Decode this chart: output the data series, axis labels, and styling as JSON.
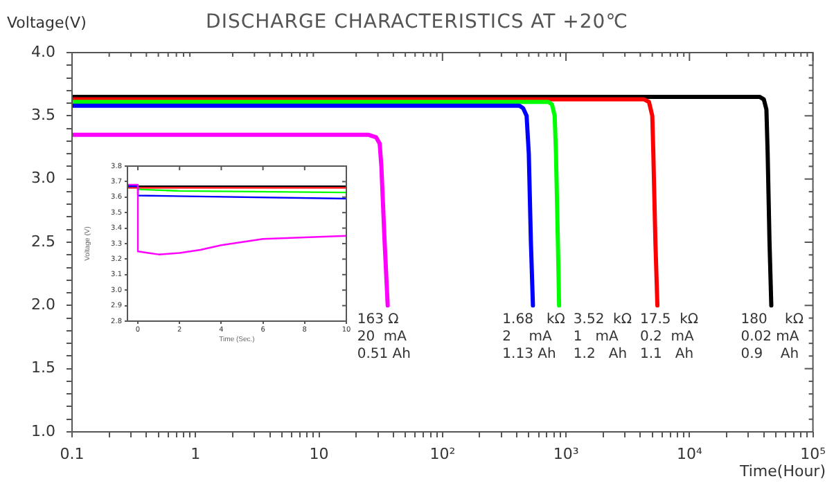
{
  "chart_data": [
    {
      "type": "line",
      "title": "DISCHARGE CHARACTERISTICS AT +20℃",
      "xlabel": "Time(Hour)",
      "ylabel": "Voltage(V)",
      "log": "x",
      "xlim": [
        0.1,
        100000
      ],
      "ylim": [
        1.0,
        4.0
      ],
      "xticks": [
        {
          "value": 0.1,
          "label": "0.1"
        },
        {
          "value": 0.2,
          "label": null
        },
        {
          "value": 0.3,
          "label": null
        },
        {
          "value": 0.4,
          "label": null
        },
        {
          "value": 0.5,
          "label": null
        },
        {
          "value": 0.6,
          "label": null
        },
        {
          "value": 0.7,
          "label": null
        },
        {
          "value": 0.8,
          "label": null
        },
        {
          "value": 0.9,
          "label": null
        },
        1,
        {
          "value": 2,
          "label": null
        },
        {
          "value": 3,
          "label": null
        },
        {
          "value": 4,
          "label": null
        },
        {
          "value": 5,
          "label": null
        },
        {
          "value": 6,
          "label": null
        },
        {
          "value": 7,
          "label": null
        },
        {
          "value": 8,
          "label": null
        },
        {
          "value": 9,
          "label": null
        },
        10,
        {
          "value": 20,
          "label": null
        },
        {
          "value": 30,
          "label": null
        },
        {
          "value": 40,
          "label": null
        },
        {
          "value": 50,
          "label": null
        },
        {
          "value": 60,
          "label": null
        },
        {
          "value": 70,
          "label": null
        },
        {
          "value": 80,
          "label": null
        },
        {
          "value": 90,
          "label": null
        },
        {
          "value": 100,
          "label": "10²"
        },
        {
          "value": 200,
          "label": null
        },
        {
          "value": 300,
          "label": null
        },
        {
          "value": 400,
          "label": null
        },
        {
          "value": 500,
          "label": null
        },
        {
          "value": 600,
          "label": null
        },
        {
          "value": 700,
          "label": null
        },
        {
          "value": 800,
          "label": null
        },
        {
          "value": 900,
          "label": null
        },
        {
          "value": 1000,
          "label": "10³"
        },
        {
          "value": 2000,
          "label": null
        },
        {
          "value": 3000,
          "label": null
        },
        {
          "value": 4000,
          "label": null
        },
        {
          "value": 5000,
          "label": null
        },
        {
          "value": 6000,
          "label": null
        },
        {
          "value": 7000,
          "label": null
        },
        {
          "value": 8000,
          "label": null
        },
        {
          "value": 9000,
          "label": null
        },
        {
          "value": 10000,
          "label": "10⁴"
        },
        {
          "value": 20000,
          "label": null
        },
        {
          "value": 30000,
          "label": null
        },
        {
          "value": 40000,
          "label": null
        },
        {
          "value": 50000,
          "label": null
        },
        {
          "value": 60000,
          "label": null
        },
        {
          "value": 70000,
          "label": null
        },
        {
          "value": 80000,
          "label": null
        },
        {
          "value": 90000,
          "label": null
        },
        {
          "value": 100000,
          "label": "10⁵"
        }
      ],
      "yticks": [
        {
          "value": 1.0,
          "label": "1.0"
        },
        {
          "value": 1.1,
          "label": null
        },
        {
          "value": 1.2,
          "label": null
        },
        {
          "value": 1.3,
          "label": null
        },
        {
          "value": 1.4,
          "label": null
        },
        {
          "value": 1.5,
          "label": "1.5"
        },
        {
          "value": 1.6,
          "label": null
        },
        {
          "value": 1.7,
          "label": null
        },
        {
          "value": 1.8,
          "label": null
        },
        {
          "value": 1.9,
          "label": null
        },
        {
          "value": 2.0,
          "label": "2.0"
        },
        {
          "value": 2.1,
          "label": null
        },
        {
          "value": 2.2,
          "label": null
        },
        {
          "value": 2.3,
          "label": null
        },
        {
          "value": 2.4,
          "label": null
        },
        {
          "value": 2.5,
          "label": "2.5"
        },
        {
          "value": 2.6,
          "label": null
        },
        {
          "value": 2.7,
          "label": null
        },
        {
          "value": 2.8,
          "label": null
        },
        {
          "value": 2.9,
          "label": null
        },
        {
          "value": 3.0,
          "label": "3.0"
        },
        {
          "value": 3.1,
          "label": null
        },
        {
          "value": 3.2,
          "label": null
        },
        {
          "value": 3.3,
          "label": null
        },
        {
          "value": 3.4,
          "label": null
        },
        {
          "value": 3.5,
          "label": "3.5"
        },
        {
          "value": 3.6,
          "label": null
        },
        {
          "value": 3.7,
          "label": null
        },
        {
          "value": 3.8,
          "label": null
        },
        {
          "value": 3.9,
          "label": null
        },
        {
          "value": 4.0,
          "label": "4.0"
        }
      ],
      "series": [
        {
          "color": "#ff00ff",
          "x": [
            0.1,
            25,
            29,
            31,
            32,
            34,
            36
          ],
          "values": [
            3.35,
            3.35,
            3.33,
            3.28,
            3.1,
            2.5,
            2.0
          ]
        },
        {
          "color": "#0000ff",
          "x": [
            0.1,
            420,
            450,
            480,
            500,
            520,
            540
          ],
          "values": [
            3.58,
            3.58,
            3.56,
            3.5,
            3.2,
            2.5,
            2.0
          ]
        },
        {
          "color": "#00ff00",
          "x": [
            0.1,
            720,
            770,
            810,
            830,
            860,
            880
          ],
          "values": [
            3.61,
            3.61,
            3.59,
            3.5,
            3.2,
            2.5,
            2.0
          ]
        },
        {
          "color": "#ff0000",
          "x": [
            0.1,
            4300,
            4700,
            5000,
            5100,
            5300,
            5500
          ],
          "values": [
            3.63,
            3.63,
            3.61,
            3.5,
            3.2,
            2.5,
            2.0
          ]
        },
        {
          "color": "#000000",
          "x": [
            0.1,
            37000,
            40000,
            42000,
            43000,
            44500,
            46000
          ],
          "values": [
            3.65,
            3.65,
            3.63,
            3.55,
            3.2,
            2.5,
            2.0
          ]
        }
      ],
      "annotations": [
        "163 Ω",
        "20  mA",
        "0.51 Ah",
        "1.68   kΩ",
        "2    mA",
        "1.13 Ah",
        "3.52  kΩ",
        "1   mA",
        "1.2   Ah",
        "17.5  kΩ",
        "0.2  mA",
        "1.1   Ah",
        "180    kΩ",
        "0.02 mA",
        "0.9    Ah"
      ]
    },
    {
      "type": "line",
      "xlabel": "Time (Sec.)",
      "ylabel": "Voltage (V)",
      "xlim": [
        -0.5,
        10
      ],
      "ylim": [
        2.8,
        3.8
      ],
      "xticks": [
        0,
        2,
        4,
        6,
        8,
        10
      ],
      "yticks": [
        {
          "value": 2.8,
          "label": "2.8"
        },
        {
          "value": 2.9,
          "label": "2.9"
        },
        {
          "value": 3.0,
          "label": "3.0"
        },
        {
          "value": 3.1,
          "label": "3.1"
        },
        {
          "value": 3.2,
          "label": "3.2"
        },
        {
          "value": 3.3,
          "label": "3.3"
        },
        {
          "value": 3.4,
          "label": "3.4"
        },
        {
          "value": 3.5,
          "label": "3.5"
        },
        {
          "value": 3.6,
          "label": "3.6"
        },
        {
          "value": 3.7,
          "label": "3.7"
        },
        {
          "value": 3.8,
          "label": "3.8"
        }
      ],
      "series": [
        {
          "color": "#ff00ff",
          "x": [
            -0.5,
            0,
            0,
            0.5,
            1,
            2,
            3,
            4,
            5,
            6,
            8,
            10
          ],
          "values": [
            3.68,
            3.68,
            3.25,
            3.24,
            3.23,
            3.24,
            3.26,
            3.29,
            3.31,
            3.33,
            3.34,
            3.35
          ]
        },
        {
          "color": "#0000ff",
          "x": [
            -0.5,
            0,
            0,
            10
          ],
          "values": [
            3.67,
            3.67,
            3.61,
            3.59
          ]
        },
        {
          "color": "#00ff00",
          "x": [
            0,
            0,
            2,
            10
          ],
          "values": [
            3.67,
            3.65,
            3.64,
            3.63
          ]
        },
        {
          "color": "#ff0000",
          "x": [
            -0.5,
            10
          ],
          "values": [
            3.66,
            3.66
          ]
        },
        {
          "color": "#000000",
          "x": [
            -0.5,
            10
          ],
          "values": [
            3.67,
            3.67
          ]
        }
      ]
    }
  ]
}
